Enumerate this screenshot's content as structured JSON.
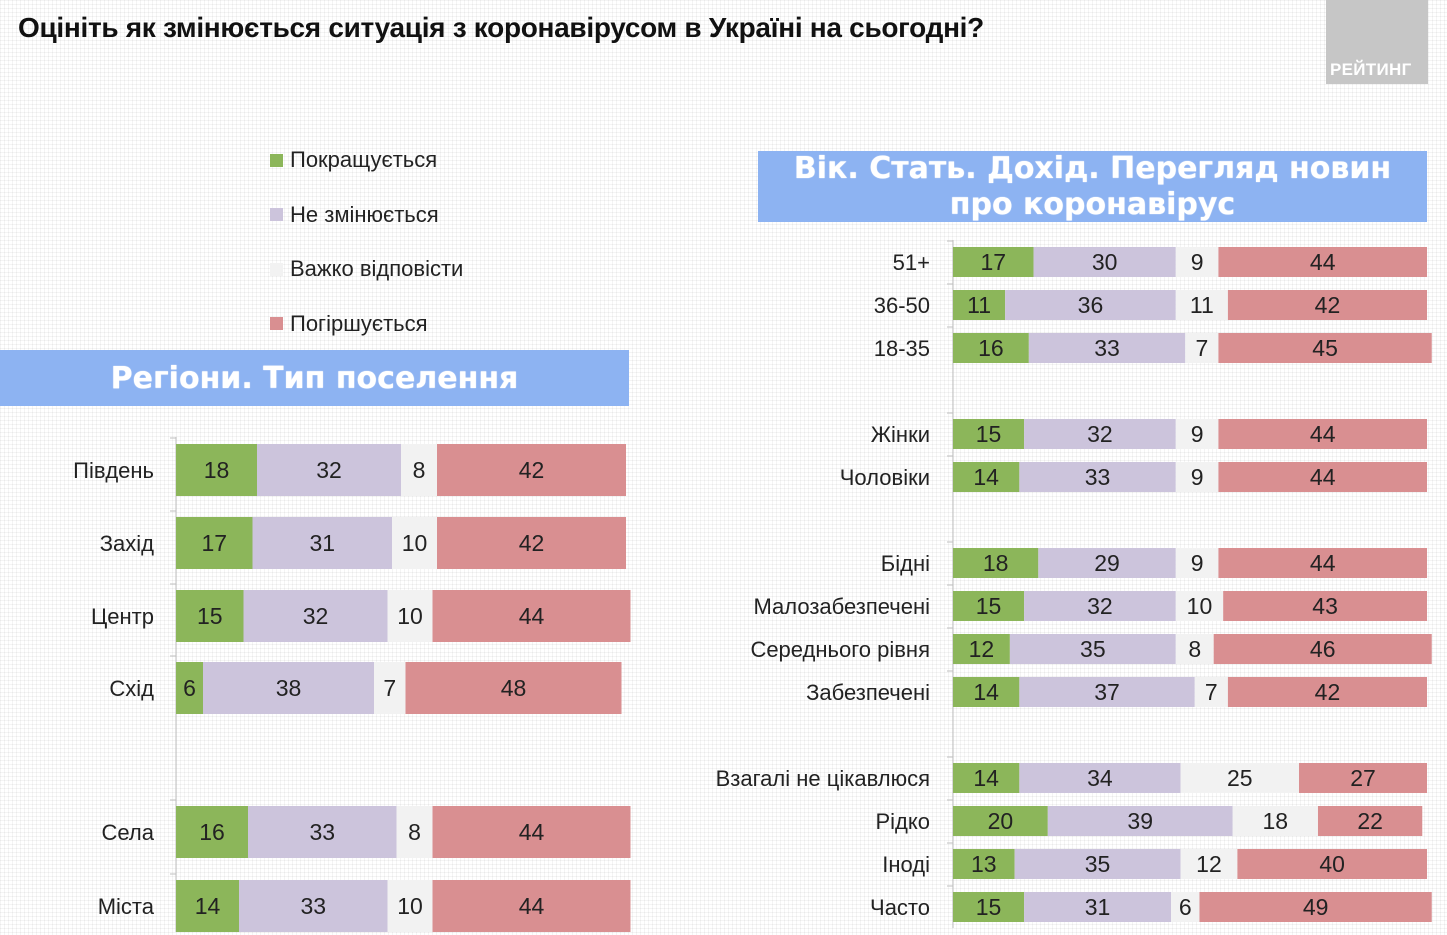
{
  "title": "Оцініть як змінюється ситуація з коронавірусом в Україні на сьогодні?",
  "logo_text": "РЕЙТИНГ",
  "colors": {
    "improving": "#8cb65a",
    "unchanged": "#ccc4dc",
    "hard_to_say": "#f2f2f2",
    "worsening": "#d98f91",
    "banner": "#8db3f2"
  },
  "legend": [
    {
      "label": "Покращується",
      "color": "#8cb65a"
    },
    {
      "label": "Не змінюється",
      "color": "#ccc4dc"
    },
    {
      "label": "Важко відповісти",
      "color": "#f2f2f2"
    },
    {
      "label": "Погіршується",
      "color": "#d98f91"
    }
  ],
  "banners": {
    "left": "Регіони. Тип поселення",
    "right_line1": "Вік. Стать. Дохід. Перегляд новин",
    "right_line2": "про коронавірус"
  },
  "chart_data": [
    {
      "type": "bar",
      "stacked": true,
      "orientation": "horizontal",
      "title": "Регіони. Тип поселення",
      "series_names": [
        "Покращується",
        "Не змінюється",
        "Важко відповісти",
        "Погіршується"
      ],
      "groups": [
        [
          {
            "label": "Південь",
            "values": [
              18,
              32,
              8,
              42
            ]
          },
          {
            "label": "Захід",
            "values": [
              17,
              31,
              10,
              42
            ]
          },
          {
            "label": "Центр",
            "values": [
              15,
              32,
              10,
              44
            ]
          },
          {
            "label": "Схід",
            "values": [
              6,
              38,
              7,
              48
            ]
          }
        ],
        [
          {
            "label": "Села",
            "values": [
              16,
              33,
              8,
              44
            ]
          },
          {
            "label": "Міста",
            "values": [
              14,
              33,
              10,
              44
            ]
          }
        ]
      ]
    },
    {
      "type": "bar",
      "stacked": true,
      "orientation": "horizontal",
      "title": "Вік. Стать. Дохід. Перегляд новин про коронавірус",
      "series_names": [
        "Покращується",
        "Не змінюється",
        "Важко відповісти",
        "Погіршується"
      ],
      "groups": [
        [
          {
            "label": "51+",
            "values": [
              17,
              30,
              9,
              44
            ]
          },
          {
            "label": "36-50",
            "values": [
              11,
              36,
              11,
              42
            ]
          },
          {
            "label": "18-35",
            "values": [
              16,
              33,
              7,
              45
            ]
          }
        ],
        [
          {
            "label": "Жінки",
            "values": [
              15,
              32,
              9,
              44
            ]
          },
          {
            "label": "Чоловіки",
            "values": [
              14,
              33,
              9,
              44
            ]
          }
        ],
        [
          {
            "label": "Бідні",
            "values": [
              18,
              29,
              9,
              44
            ]
          },
          {
            "label": "Малозабезпечені",
            "values": [
              15,
              32,
              10,
              43
            ]
          },
          {
            "label": "Середнього рівня",
            "values": [
              12,
              35,
              8,
              46
            ]
          },
          {
            "label": "Забезпечені",
            "values": [
              14,
              37,
              7,
              42
            ]
          }
        ],
        [
          {
            "label": "Взагалі не цікавлюся",
            "values": [
              14,
              34,
              25,
              27
            ]
          },
          {
            "label": "Рідко",
            "values": [
              20,
              39,
              18,
              22
            ]
          },
          {
            "label": "Іноді",
            "values": [
              13,
              35,
              12,
              40
            ]
          },
          {
            "label": "Часто",
            "values": [
              15,
              31,
              6,
              49
            ]
          }
        ]
      ]
    }
  ]
}
